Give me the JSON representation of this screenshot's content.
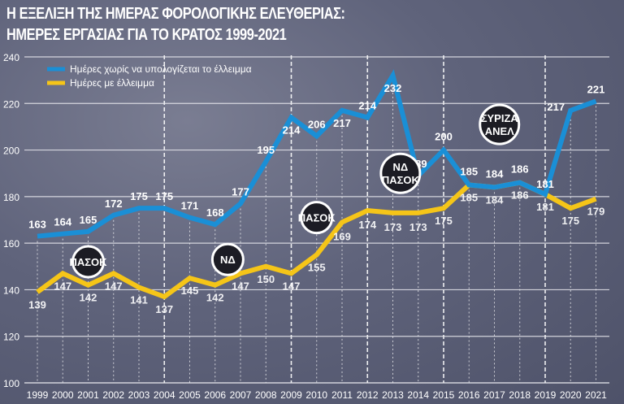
{
  "title_line1": "Η ΕΞΕΛΙΞΗ ΤΗΣ ΗΜΕΡΑΣ ΦΟΡΟΛΟΓΙΚΗΣ ΕΛΕΥΘΕΡΙΑΣ:",
  "title_line2": "ΗΜΕΡΕΣ ΕΡΓΑΣΙΑΣ ΓΙΑ ΤΟ ΚΡΑΤΟΣ 1999-2021",
  "chart_data": {
    "type": "line",
    "title": "Η ΕΞΕΛΙΞΗ ΤΗΣ ΗΜΕΡΑΣ ΦΟΡΟΛΟΓΙΚΗΣ ΕΛΕΥΘΕΡΙΑΣ: ΗΜΕΡΕΣ ΕΡΓΑΣΙΑΣ ΓΙΑ ΤΟ ΚΡΑΤΟΣ 1999-2021",
    "x": [
      1999,
      2000,
      2001,
      2002,
      2003,
      2004,
      2005,
      2006,
      2007,
      2008,
      2009,
      2010,
      2011,
      2012,
      2013,
      2014,
      2015,
      2016,
      2017,
      2018,
      2019,
      2020,
      2021
    ],
    "ylim": [
      100,
      240
    ],
    "yticks": [
      100,
      120,
      140,
      160,
      180,
      200,
      220,
      240
    ],
    "grid": true,
    "legend_position": "top-left",
    "series": [
      {
        "name": "Ημέρες χωρίς να υπολογίζεται το έλλειμμα",
        "color": "#1a8fd6",
        "values": [
          163,
          164,
          165,
          172,
          175,
          175,
          171,
          168,
          177,
          195,
          214,
          206,
          217,
          214,
          232,
          189,
          200,
          185,
          184,
          186,
          181,
          217,
          221
        ]
      },
      {
        "name": "Ημέρες με έλλειμμα",
        "color": "#f5c518",
        "values": [
          139,
          147,
          142,
          147,
          141,
          137,
          145,
          142,
          147,
          150,
          147,
          155,
          169,
          174,
          173,
          173,
          175,
          185,
          184,
          186,
          181,
          175,
          179
        ]
      }
    ],
    "election_years": [
      2004,
      2009,
      2012,
      2015,
      2019
    ],
    "annotations": [
      {
        "text": [
          "ΠΑΣΟΚ"
        ],
        "year": 2001,
        "value": 152
      },
      {
        "text": [
          "ΝΔ"
        ],
        "year": 2006.5,
        "value": 153
      },
      {
        "text": [
          "ΠΑΣΟΚ"
        ],
        "year": 2010,
        "value": 171
      },
      {
        "text": [
          "ΝΔ",
          "ΠΑΣΟΚ"
        ],
        "year": 2013.3,
        "value": 190
      },
      {
        "text": [
          "ΣΥΡΙΖΑ",
          "ΑΝΕΛ"
        ],
        "year": 2017.2,
        "value": 211
      }
    ]
  }
}
